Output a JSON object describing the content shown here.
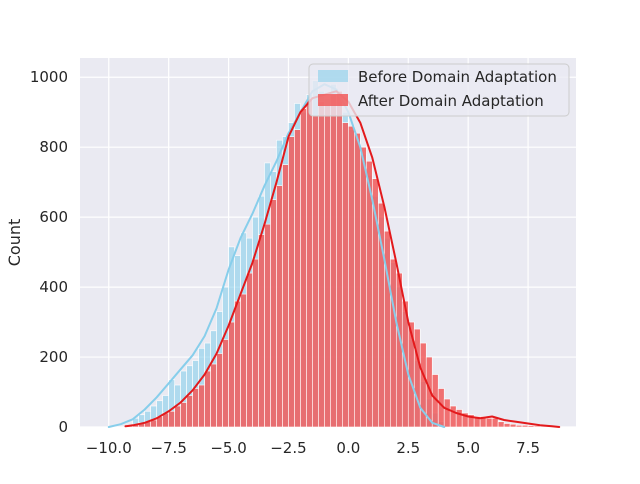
{
  "chart_data": {
    "type": "bar",
    "title": "",
    "xlabel": "",
    "ylabel": "Count",
    "xlim": [
      -11.2,
      9.5
    ],
    "ylim": [
      0,
      1055
    ],
    "xticks": [
      -10.0,
      -7.5,
      -5.0,
      -2.5,
      0.0,
      2.5,
      5.0,
      7.5
    ],
    "xtick_labels": [
      "−10.0",
      "−7.5",
      "−5.0",
      "−2.5",
      "0.0",
      "2.5",
      "5.0",
      "7.5"
    ],
    "yticks": [
      0,
      200,
      400,
      600,
      800,
      1000
    ],
    "ytick_labels": [
      "0",
      "200",
      "400",
      "600",
      "800",
      "1000"
    ],
    "grid": true,
    "legend_position": "top-right",
    "series": [
      {
        "name": "Before Domain Adaptation",
        "color": "#87ceeb",
        "bin_edges": [
          -9.0,
          -8.75,
          -8.5,
          -8.25,
          -8.0,
          -7.75,
          -7.5,
          -7.25,
          -7.0,
          -6.75,
          -6.5,
          -6.25,
          -6.0,
          -5.75,
          -5.5,
          -5.25,
          -5.0,
          -4.75,
          -4.5,
          -4.25,
          -4.0,
          -3.75,
          -3.5,
          -3.25,
          -3.0,
          -2.75,
          -2.5,
          -2.25,
          -2.0,
          -1.75,
          -1.5,
          -1.25,
          -1.0,
          -0.75,
          -0.5,
          -0.25,
          0.0,
          0.25,
          0.5,
          0.75,
          1.0,
          1.25,
          1.5,
          1.75,
          2.0,
          2.25,
          2.5,
          2.75,
          3.0,
          3.25,
          3.5,
          3.75,
          4.0
        ],
        "counts": [
          25,
          35,
          45,
          60,
          75,
          90,
          135,
          120,
          160,
          175,
          190,
          225,
          240,
          275,
          330,
          400,
          515,
          490,
          555,
          540,
          600,
          660,
          755,
          730,
          820,
          830,
          870,
          925,
          900,
          950,
          990,
          960,
          940,
          980,
          930,
          900,
          850,
          820,
          780,
          720,
          660,
          600,
          540,
          470,
          400,
          330,
          250,
          190,
          130,
          80,
          40,
          15
        ]
      },
      {
        "name": "After Domain Adaptation",
        "color": "#f15a5a",
        "bin_edges": [
          -9.25,
          -9.0,
          -8.75,
          -8.5,
          -8.25,
          -8.0,
          -7.75,
          -7.5,
          -7.25,
          -7.0,
          -6.75,
          -6.5,
          -6.25,
          -6.0,
          -5.75,
          -5.5,
          -5.25,
          -5.0,
          -4.75,
          -4.5,
          -4.25,
          -4.0,
          -3.75,
          -3.5,
          -3.25,
          -3.0,
          -2.75,
          -2.5,
          -2.25,
          -2.0,
          -1.75,
          -1.5,
          -1.25,
          -1.0,
          -0.75,
          -0.5,
          -0.25,
          0.0,
          0.25,
          0.5,
          0.75,
          1.0,
          1.25,
          1.5,
          1.75,
          2.0,
          2.25,
          2.5,
          2.75,
          3.0,
          3.25,
          3.5,
          3.75,
          4.0,
          4.25,
          4.5,
          4.75,
          5.0,
          5.25,
          5.5,
          5.75,
          6.0,
          6.25,
          6.5,
          6.75,
          7.0,
          7.25,
          7.5,
          7.75,
          8.0,
          8.25,
          8.5,
          8.75
        ],
        "counts": [
          5,
          8,
          12,
          15,
          20,
          30,
          40,
          45,
          60,
          70,
          90,
          110,
          120,
          160,
          180,
          210,
          250,
          300,
          360,
          380,
          440,
          480,
          550,
          580,
          650,
          690,
          750,
          830,
          850,
          910,
          940,
          890,
          930,
          920,
          950,
          960,
          870,
          860,
          840,
          800,
          760,
          710,
          640,
          560,
          480,
          440,
          360,
          300,
          280,
          240,
          200,
          150,
          110,
          80,
          60,
          50,
          40,
          35,
          30,
          30,
          25,
          25,
          15,
          10,
          8,
          5,
          5,
          4,
          3,
          2,
          2,
          1
        ]
      }
    ],
    "kde": [
      {
        "series": "Before Domain Adaptation",
        "color": "#87ceeb",
        "x": [
          -10.0,
          -9.5,
          -9.0,
          -8.5,
          -8.0,
          -7.5,
          -7.0,
          -6.5,
          -6.0,
          -5.5,
          -5.0,
          -4.5,
          -4.0,
          -3.5,
          -3.0,
          -2.5,
          -2.0,
          -1.5,
          -1.0,
          -0.5,
          0.0,
          0.5,
          1.0,
          1.5,
          2.0,
          2.5,
          3.0,
          3.5,
          4.0
        ],
        "y": [
          0,
          8,
          22,
          50,
          85,
          125,
          165,
          205,
          260,
          340,
          450,
          540,
          610,
          690,
          760,
          840,
          900,
          960,
          980,
          965,
          900,
          800,
          650,
          480,
          300,
          150,
          55,
          12,
          0
        ]
      },
      {
        "series": "After Domain Adaptation",
        "color": "#e31a1c",
        "x": [
          -9.3,
          -9.0,
          -8.5,
          -8.0,
          -7.5,
          -7.0,
          -6.5,
          -6.0,
          -5.5,
          -5.0,
          -4.5,
          -4.0,
          -3.5,
          -3.0,
          -2.5,
          -2.0,
          -1.5,
          -1.0,
          -0.5,
          0.0,
          0.5,
          1.0,
          1.5,
          2.0,
          2.5,
          3.0,
          3.5,
          4.0,
          4.5,
          5.0,
          5.5,
          6.0,
          6.5,
          7.0,
          7.5,
          8.0,
          8.5,
          8.8
        ],
        "y": [
          2,
          5,
          12,
          25,
          45,
          70,
          105,
          150,
          210,
          290,
          380,
          470,
          580,
          700,
          830,
          900,
          940,
          950,
          960,
          930,
          870,
          770,
          630,
          470,
          300,
          170,
          90,
          55,
          40,
          30,
          25,
          30,
          20,
          15,
          10,
          5,
          2,
          0
        ]
      }
    ]
  }
}
